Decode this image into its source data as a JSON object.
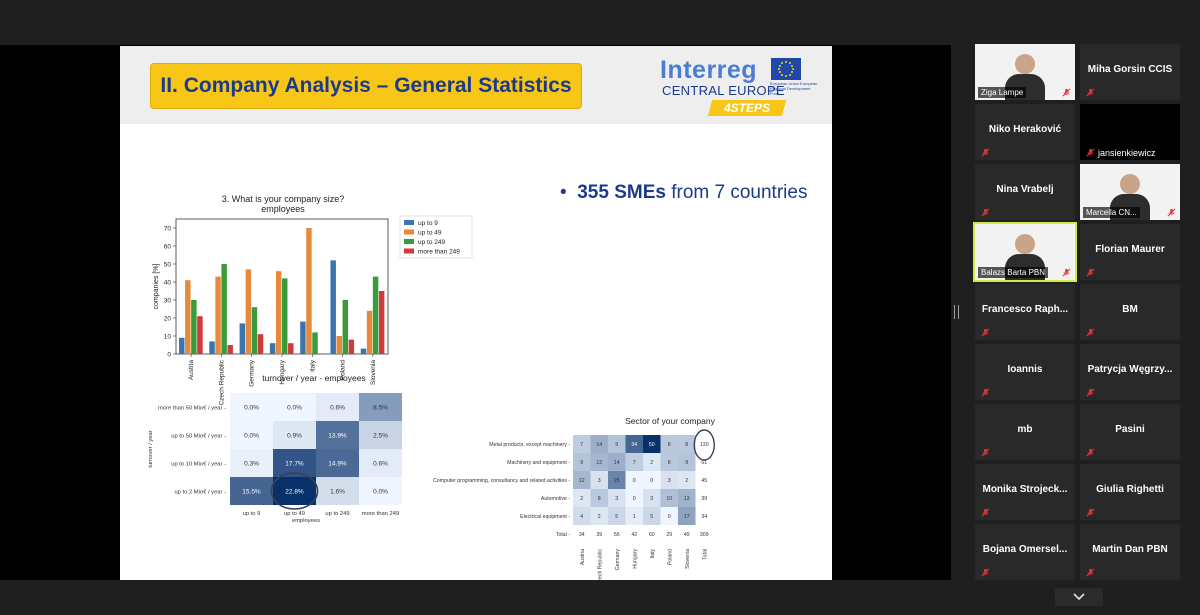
{
  "slide": {
    "title": "II. Company Analysis – General Statistics",
    "logo": {
      "name": "Interreg",
      "region": "CENTRAL EUROPE",
      "badge": "4STEPS",
      "eu_text": "European Union European Regional Development Fund"
    },
    "bullet_bold": "355 SMEs",
    "bullet_rest": " from 7 countries",
    "colors": {
      "title_bg": "#f7c617",
      "title_fg": "#1b3a8c"
    }
  },
  "chart_data": [
    {
      "type": "bar",
      "title": "3. What is your company size?",
      "subtitle": "employees",
      "ylabel": "companies [%]",
      "ylim": [
        0,
        75
      ],
      "yticks": [
        0,
        10,
        20,
        30,
        40,
        50,
        60,
        70
      ],
      "categories": [
        "Austria",
        "Czech Republic",
        "Germany",
        "Hungary",
        "Italy",
        "Poland",
        "Slovenia"
      ],
      "legend_position": "right",
      "series": [
        {
          "name": "up to 9",
          "color": "#3a75ad",
          "values": [
            9,
            7,
            17,
            6,
            18,
            52,
            3
          ]
        },
        {
          "name": "up to 49",
          "color": "#e6893a",
          "values": [
            41,
            43,
            47,
            46,
            70,
            10,
            24
          ]
        },
        {
          "name": "up to 249",
          "color": "#3a9b3a",
          "values": [
            30,
            50,
            26,
            42,
            12,
            30,
            43
          ]
        },
        {
          "name": "more than 249",
          "color": "#cf3b3b",
          "values": [
            21,
            5,
            11,
            6,
            0,
            8,
            35
          ]
        }
      ]
    },
    {
      "type": "heatmap",
      "title": "turnover / year - employees",
      "xlabel": "employees",
      "ylabel": "turnover / year",
      "x": [
        "up to 9",
        "up to 49",
        "up to 249",
        "more than 249"
      ],
      "y": [
        "more than 50 Mio€ / year",
        "up to 50 Mio€ / year",
        "up to 10 Mio€ / year",
        "up to 2 Mio€ / year"
      ],
      "labels": [
        [
          "0.0%",
          "0.0%",
          "0.6%",
          "8.5%"
        ],
        [
          "0.0%",
          "0.9%",
          "13.9%",
          "2.5%"
        ],
        [
          "0.3%",
          "17.7%",
          "14.9%",
          "0.6%"
        ],
        [
          "15.5%",
          "22.8%",
          "1.6%",
          "0.0%"
        ]
      ],
      "values": [
        [
          0.0,
          0.0,
          0.6,
          8.5
        ],
        [
          0.0,
          0.9,
          13.9,
          2.5
        ],
        [
          0.3,
          17.7,
          14.9,
          0.6
        ],
        [
          15.5,
          22.8,
          1.6,
          0.0
        ]
      ],
      "vmax": 22.8
    },
    {
      "type": "heatmap",
      "title": "Sector of your company",
      "x": [
        "Austria",
        "Czech Republic",
        "Germany",
        "Hungary",
        "Italy",
        "Poland",
        "Slovenia",
        "Total"
      ],
      "y": [
        "Metal products, except machinery",
        "Machinery and equipment",
        "Computer programming, consultancy and related activities",
        "Automotive",
        "Electrical equipment",
        "Total"
      ],
      "values": [
        [
          7,
          14,
          9,
          34,
          50,
          8,
          8,
          130
        ],
        [
          9,
          12,
          14,
          7,
          2,
          8,
          9,
          61
        ],
        [
          12,
          3,
          25,
          0,
          0,
          3,
          2,
          45
        ],
        [
          2,
          8,
          3,
          0,
          3,
          10,
          13,
          39
        ],
        [
          4,
          2,
          5,
          1,
          5,
          0,
          17,
          34
        ],
        [
          34,
          39,
          56,
          42,
          60,
          29,
          49,
          309
        ]
      ],
      "vmax": 50
    }
  ],
  "participants": [
    {
      "name": "Ziga Lampe",
      "video": true,
      "muted": true
    },
    {
      "name": "Miha Gorsin CCIS",
      "video": false,
      "muted": true
    },
    {
      "name": "Niko Heraković",
      "video": false,
      "muted": true
    },
    {
      "name": "jansienkiewicz",
      "video": true,
      "dark": true,
      "muted": true
    },
    {
      "name": "Nina Vrabelj",
      "video": false,
      "muted": true
    },
    {
      "name": "Marcella CN...",
      "video": true,
      "muted": true
    },
    {
      "name": "Balazs Barta PBN",
      "video": true,
      "muted": true,
      "speaking": true
    },
    {
      "name": "Florian Maurer",
      "video": false,
      "muted": true
    },
    {
      "name": "Francesco  Raph...",
      "video": false,
      "muted": true
    },
    {
      "name": "BM",
      "video": false,
      "muted": true
    },
    {
      "name": "Ioannis",
      "video": false,
      "muted": true
    },
    {
      "name": "Patrycja  Węgrzy...",
      "video": false,
      "muted": true
    },
    {
      "name": "mb",
      "video": false,
      "muted": true
    },
    {
      "name": "Pasini",
      "video": false,
      "muted": true
    },
    {
      "name": "Monika  Strojeck...",
      "video": false,
      "muted": true
    },
    {
      "name": "Giulia Righetti",
      "video": false,
      "muted": true
    },
    {
      "name": "Bojana  Omersel...",
      "video": false,
      "muted": true
    },
    {
      "name": "Martin Dan PBN",
      "video": false,
      "muted": true
    }
  ],
  "icons": {
    "mic": "muted-mic-icon",
    "expand": "chevron-down-icon"
  }
}
